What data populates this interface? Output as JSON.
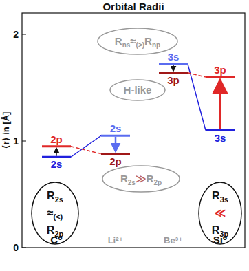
{
  "chart_data": {
    "type": "level",
    "title": "Orbital Radii",
    "y_label": "⟨r⟩ in [Å]",
    "categories": [
      "C⁰",
      "Li²⁺",
      "Be³⁺",
      "Si⁰"
    ],
    "ylim": [
      0,
      2.2
    ],
    "yticks": [
      0,
      1,
      2
    ],
    "series": [
      {
        "name": "s",
        "color": "#2020dd",
        "colors": [
          "#2020dd",
          "#5a6cf0",
          "#5a6cf0",
          "#2020dd"
        ],
        "labels": [
          "2s",
          "2s",
          "3s",
          "3s"
        ],
        "values": [
          0.85,
          1.05,
          1.72,
          1.1
        ]
      },
      {
        "name": "p",
        "color": "#e02828",
        "colors": [
          "#e02828",
          "#a01818",
          "#a01818",
          "#e02828"
        ],
        "labels": [
          "2p",
          "2p",
          "3p",
          "3p"
        ],
        "values": [
          0.95,
          0.88,
          1.64,
          1.6
        ]
      }
    ],
    "annotations": [
      {
        "color": "#999999",
        "lines": [
          [
            {
              "text": "R"
            },
            {
              "text": "ns",
              "sub": true
            },
            {
              "text": "≈"
            },
            {
              "text": "(>)",
              "sub": true
            },
            {
              "text": "R"
            },
            {
              "text": "np",
              "sub": true
            }
          ]
        ]
      },
      {
        "color": "#999999",
        "lines": [
          [
            {
              "text": "H-like"
            }
          ]
        ]
      },
      {
        "color": "#999999",
        "lines": [
          [
            {
              "text": "R"
            },
            {
              "text": "2s",
              "sub": true
            },
            {
              "text": "≫",
              "color": "#bb6666"
            },
            {
              "text": "R"
            },
            {
              "text": "2p",
              "sub": true
            }
          ]
        ]
      },
      {
        "color": "#111111",
        "lines": [
          [
            {
              "text": "R"
            },
            {
              "text": "2s",
              "sub": true
            }
          ],
          [
            {
              "text": "≈"
            },
            {
              "text": "(<)",
              "sub": true
            }
          ],
          [
            {
              "text": "R"
            },
            {
              "text": "2p",
              "sub": true
            }
          ]
        ]
      },
      {
        "color": "#111111",
        "lines": [
          [
            {
              "text": "R"
            },
            {
              "text": "3s",
              "sub": true
            }
          ],
          [
            {
              "text": "≪",
              "color": "#e02828"
            }
          ],
          [
            {
              "text": "R"
            },
            {
              "text": "3p",
              "sub": true
            }
          ]
        ]
      }
    ]
  }
}
